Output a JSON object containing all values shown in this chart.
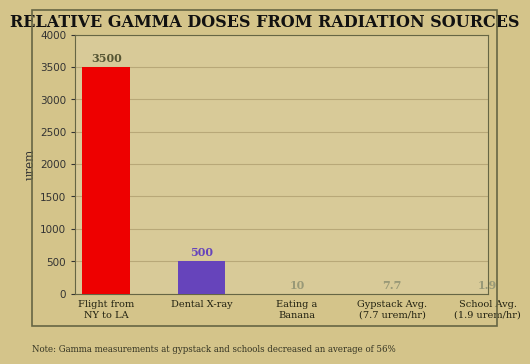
{
  "title": "RELATIVE GAMMA DOSES FROM RADIATION SOURCES",
  "categories": [
    "Flight from\nNY to LA",
    "Dental X-ray",
    "Eating a\nBanana",
    "Gypstack Avg.\n(7.7 urem/hr)",
    "School Avg.\n(1.9 urem/hr)"
  ],
  "values": [
    3500,
    500,
    10,
    7.7,
    1.9
  ],
  "bar_colors": [
    "#ee0000",
    "#6644bb",
    null,
    null,
    null
  ],
  "value_labels": [
    "3500",
    "500",
    "10",
    "7.7",
    "1.9"
  ],
  "value_label_colors": [
    "#555533",
    "#6644bb",
    "#999977",
    "#999977",
    "#999977"
  ],
  "ylabel": "urem",
  "ylim": [
    0,
    4000
  ],
  "yticks": [
    0,
    500,
    1000,
    1500,
    2000,
    2500,
    3000,
    3500,
    4000
  ],
  "background_color": "#d4c48a",
  "plot_bg_color": "#d8ca98",
  "title_fontsize": 11.5,
  "note_text": "Note: Gamma measurements at gypstack and schools decreased an average of 56%",
  "grid_color": "#b8a878",
  "border_color": "#666644"
}
